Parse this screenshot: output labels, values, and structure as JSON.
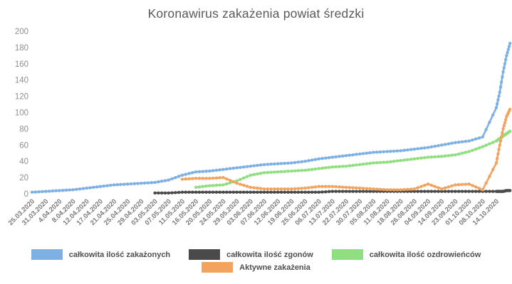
{
  "chart_data": {
    "type": "line",
    "title": "Koronawirus zakażenia powiat średzki",
    "xlabel": "",
    "ylabel": "",
    "ylim": [
      0,
      200
    ],
    "ytick_step": 20,
    "grid": false,
    "legend_position": "bottom",
    "legend_rows": [
      [
        0,
        1,
        2
      ],
      [
        3
      ]
    ],
    "points_beyond_last_label": 4,
    "categories": [
      "25.03.2020",
      "31.03.2020",
      "4.04.2020",
      "8.04.2020",
      "12.04.2020",
      "17.04.2020",
      "21.04.2020",
      "25.04.2020",
      "29.04.2020",
      "03.05.2020",
      "07.05.2020",
      "11.05.2020",
      "16.05.2020",
      "20.05.2020",
      "24.05.2020",
      "29.05.2020",
      "03.06.2020",
      "07.06.2020",
      "12.06.2020",
      "19.06.2020",
      "25.06.2020",
      "06.07.2020",
      "13.07.2020",
      "22.07.2020",
      "30.07.2020",
      "05.08.2020",
      "11.08.2020",
      "18.08.2020",
      "26.08.2020",
      "04.09.2020",
      "14.09.2020",
      "23.09.2020",
      "01.10.2020",
      "08.10.2020",
      "14.10.2020"
    ],
    "series": [
      {
        "id": "calkowita-ilosc-zakazonych",
        "name": "całkowita ilość zakażonych",
        "color": "#7DB1E5",
        "values": [
          2,
          3,
          4,
          5,
          7,
          9,
          11,
          12,
          13,
          14,
          17,
          23,
          27,
          28,
          30,
          32,
          34,
          36,
          37,
          38,
          40,
          43,
          45,
          47,
          49,
          51,
          52,
          53,
          55,
          57,
          60,
          63,
          65,
          70,
          106,
          125,
          150,
          170,
          185
        ]
      },
      {
        "id": "calkowita-ilosc-zgonow",
        "name": "całkowita ilość zgonów",
        "color": "#4A4A4A",
        "values": [
          null,
          null,
          null,
          null,
          null,
          null,
          null,
          null,
          null,
          1,
          1,
          2,
          2,
          2,
          2,
          2,
          2,
          2,
          2,
          2,
          2,
          2,
          3,
          3,
          3,
          3,
          3,
          3,
          3,
          3,
          3,
          3,
          3,
          3,
          3,
          3,
          3,
          4,
          4
        ]
      },
      {
        "id": "calkowita-ilosc-ozdrowiencow",
        "name": "całkowita ilość ozdrowieńców",
        "color": "#8FDF7F",
        "values": [
          null,
          null,
          null,
          null,
          null,
          null,
          null,
          null,
          null,
          null,
          null,
          null,
          8,
          10,
          11,
          16,
          23,
          26,
          27,
          28,
          29,
          31,
          33,
          34,
          36,
          38,
          39,
          41,
          43,
          45,
          46,
          48,
          52,
          58,
          65,
          68,
          71,
          74,
          77
        ]
      },
      {
        "id": "aktywne-zakazenia",
        "name": "Aktywne zakażenia",
        "color": "#F2A45E",
        "values": [
          null,
          null,
          null,
          null,
          null,
          null,
          null,
          null,
          null,
          null,
          null,
          18,
          19,
          19,
          20,
          13,
          8,
          6,
          6,
          6,
          7,
          9,
          9,
          8,
          7,
          6,
          5,
          5,
          6,
          12,
          6,
          11,
          12,
          5,
          38,
          60,
          80,
          95,
          104
        ]
      }
    ],
    "axis_tick_labels_y": [
      "0",
      "20",
      "40",
      "60",
      "80",
      "100",
      "120",
      "140",
      "160",
      "180",
      "200"
    ]
  },
  "styles": {
    "background": "#ffffff",
    "title_color": "#595959",
    "y_label_color": "#8f8f8f",
    "x_label_color": "#7d7d7d",
    "legend_text_color": "#4f4f4f"
  }
}
